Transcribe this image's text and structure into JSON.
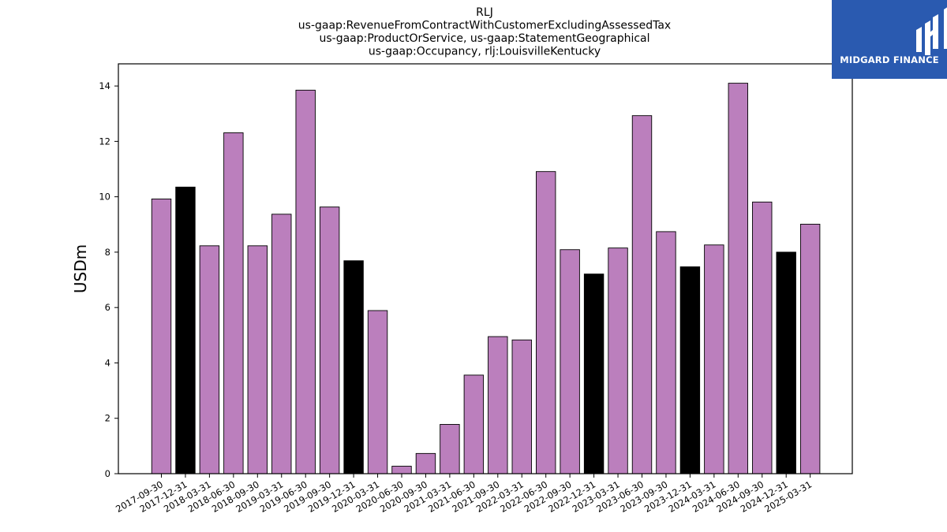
{
  "chart_data": {
    "type": "bar",
    "title_lines": [
      "RLJ",
      "us-gaap:RevenueFromContractWithCustomerExcludingAssessedTax",
      "us-gaap:ProductOrService, us-gaap:StatementGeographical",
      "us-gaap:Occupancy, rlj:LouisvilleKentucky"
    ],
    "xlabel": "",
    "ylabel": "USDm",
    "ylim": [
      0,
      14.8
    ],
    "yticks": [
      0,
      2,
      4,
      6,
      8,
      10,
      12,
      14
    ],
    "categories": [
      "2017-09-30",
      "2017-12-31",
      "2018-03-31",
      "2018-06-30",
      "2018-09-30",
      "2019-03-31",
      "2019-06-30",
      "2019-09-30",
      "2019-12-31",
      "2020-03-31",
      "2020-06-30",
      "2020-09-30",
      "2021-03-31",
      "2021-06-30",
      "2021-09-30",
      "2022-03-31",
      "2022-06-30",
      "2022-09-30",
      "2022-12-31",
      "2023-03-31",
      "2023-06-30",
      "2023-09-30",
      "2023-12-31",
      "2024-03-31",
      "2024-06-30",
      "2024-09-30",
      "2024-12-31",
      "2025-03-31"
    ],
    "values": [
      9.92,
      10.35,
      8.23,
      12.31,
      8.23,
      9.37,
      13.85,
      9.63,
      7.69,
      5.89,
      0.27,
      0.73,
      1.78,
      3.56,
      4.95,
      4.83,
      10.91,
      8.09,
      7.21,
      8.15,
      12.93,
      8.74,
      7.47,
      8.26,
      14.1,
      9.81,
      8.0,
      9.01
    ],
    "bar_kind": [
      "quarter",
      "annual",
      "quarter",
      "quarter",
      "quarter",
      "quarter",
      "quarter",
      "quarter",
      "annual",
      "quarter",
      "quarter",
      "quarter",
      "quarter",
      "quarter",
      "quarter",
      "quarter",
      "quarter",
      "quarter",
      "annual",
      "quarter",
      "quarter",
      "quarter",
      "annual",
      "quarter",
      "quarter",
      "quarter",
      "annual",
      "quarter"
    ],
    "colors": {
      "quarter": "#bb7fbd",
      "annual": "#000000",
      "edge": "#000000"
    },
    "grid": false,
    "legend": "none"
  },
  "logo": {
    "text": "MIDGARD FINANCE",
    "background": "#2a5ab0",
    "icon": "midgard-logo-icon"
  }
}
